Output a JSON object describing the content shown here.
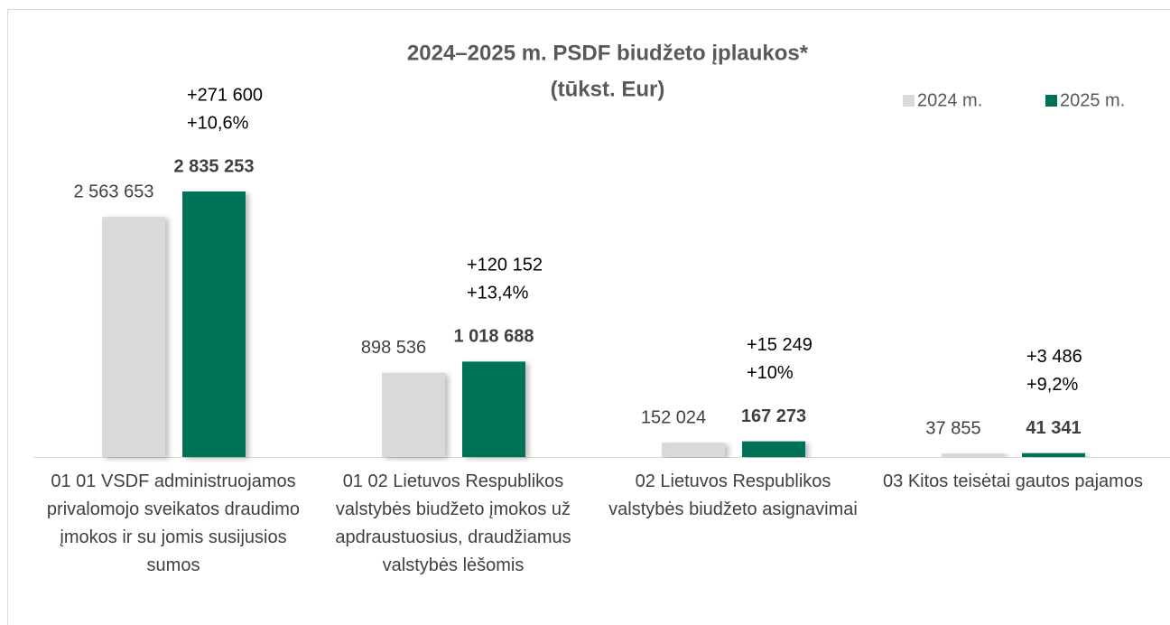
{
  "chart_data": {
    "type": "bar",
    "title": [
      "2024–2025 m. PSDF biudžeto įplaukos*",
      "(tūkst. Eur)"
    ],
    "categories": [
      "01 01 VSDF administruojamos privalomojo sveikatos draudimo įmokos ir su jomis susijusios sumos",
      "01 02 Lietuvos Respublikos valstybės biudžeto įmokos už apdraustuosius, draudžiamus valstybės lėšomis",
      "02 Lietuvos Respublikos valstybės biudžeto asignavimai",
      "03 Kitos teisėtai gautos pajamos"
    ],
    "series": [
      {
        "name": "2024 m.",
        "color": "#d9d9d9",
        "values": [
          2563653,
          898536,
          152024,
          37855
        ],
        "value_labels": [
          "2 563 653",
          "898 536",
          "152 024",
          "37 855"
        ]
      },
      {
        "name": "2025 m.",
        "color": "#007256",
        "values": [
          2835253,
          1018688,
          167273,
          41341
        ],
        "value_labels": [
          "2 835 253",
          "1 018 688",
          "167 273",
          "41 341"
        ]
      }
    ],
    "annotations": [
      [
        "+271 600",
        "+10,6%"
      ],
      [
        "+120 152",
        "+13,4%"
      ],
      [
        "+15 249",
        "+10%"
      ],
      [
        "+3 486",
        "+9,2%"
      ]
    ],
    "legend": "top-right"
  }
}
